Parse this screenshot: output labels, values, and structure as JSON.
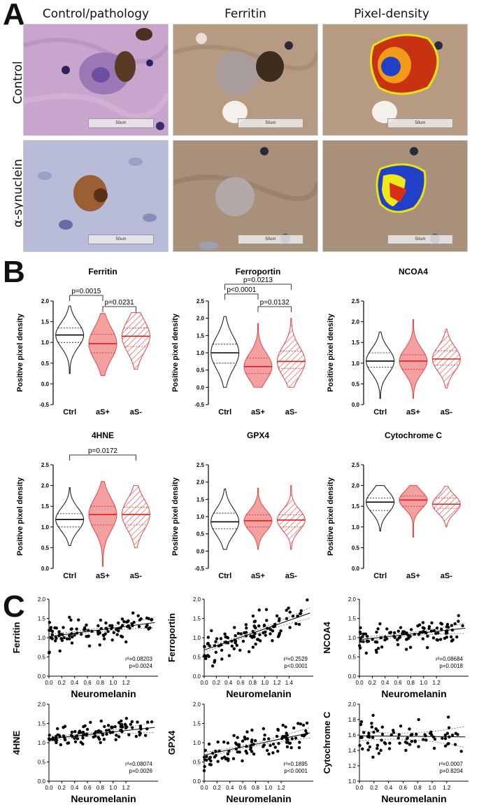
{
  "panels": {
    "a": "A",
    "b": "B",
    "c": "C"
  },
  "panel_a": {
    "column_headers": [
      "Control/pathology",
      "Ferritin",
      "Pixel-density"
    ],
    "row_labels": [
      "Control",
      "α-synuclein"
    ],
    "scale_label": "50um"
  },
  "chart_data": [
    {
      "type": "violin",
      "title": "Ferritin",
      "ylabel": "Positive pixel density",
      "ylim": [
        -0.5,
        2.0
      ],
      "yticks": [
        "-0.5",
        "0.0",
        "0.5",
        "1.0",
        "1.5",
        "2.0"
      ],
      "categories": [
        "Ctrl",
        "aS+",
        "aS-"
      ],
      "series": [
        {
          "name": "Ctrl",
          "min": 0.25,
          "q1": 1.0,
          "median": 1.18,
          "q3": 1.35,
          "max": 1.88
        },
        {
          "name": "aS+",
          "min": 0.2,
          "q1": 0.75,
          "median": 0.97,
          "q3": 1.2,
          "max": 1.7
        },
        {
          "name": "aS-",
          "min": 0.35,
          "q1": 0.9,
          "median": 1.15,
          "q3": 1.35,
          "max": 1.72
        }
      ],
      "annotations": [
        {
          "label": "p=0.0015",
          "from": 0,
          "to": 1
        },
        {
          "label": "p=0.0231",
          "from": 1,
          "to": 2
        }
      ]
    },
    {
      "type": "violin",
      "title": "Ferroportin",
      "ylabel": "Positive pixel density",
      "ylim": [
        -0.5,
        2.5
      ],
      "yticks": [
        "-0.5",
        "0.0",
        "0.5",
        "1.0",
        "1.5",
        "2.0",
        "2.5"
      ],
      "categories": [
        "Ctrl",
        "aS+",
        "aS-"
      ],
      "series": [
        {
          "name": "Ctrl",
          "min": 0.0,
          "q1": 0.7,
          "median": 1.0,
          "q3": 1.25,
          "max": 2.05
        },
        {
          "name": "aS+",
          "min": 0.0,
          "q1": 0.4,
          "median": 0.6,
          "q3": 0.85,
          "max": 1.85
        },
        {
          "name": "aS-",
          "min": 0.0,
          "q1": 0.55,
          "median": 0.75,
          "q3": 1.05,
          "max": 2.0
        }
      ],
      "annotations": [
        {
          "label": "p<0.0001",
          "from": 0,
          "to": 1
        },
        {
          "label": "p=0.0132",
          "from": 1,
          "to": 2
        },
        {
          "label": "p=0.0213",
          "from": 0,
          "to": 2
        }
      ]
    },
    {
      "type": "violin",
      "title": "NCOA4",
      "ylabel": "Positive pixel density",
      "ylim": [
        0.0,
        2.5
      ],
      "yticks": [
        "0.0",
        "0.5",
        "1.0",
        "1.5",
        "2.0",
        "2.5"
      ],
      "categories": [
        "Ctrl",
        "aS+",
        "aS-"
      ],
      "series": [
        {
          "name": "Ctrl",
          "min": 0.15,
          "q1": 0.9,
          "median": 1.05,
          "q3": 1.25,
          "max": 1.75
        },
        {
          "name": "aS+",
          "min": 0.15,
          "q1": 0.85,
          "median": 1.05,
          "q3": 1.2,
          "max": 2.05
        },
        {
          "name": "aS-",
          "min": 0.4,
          "q1": 0.95,
          "median": 1.1,
          "q3": 1.3,
          "max": 1.82
        }
      ],
      "annotations": []
    },
    {
      "type": "violin",
      "title": "4HNE",
      "ylabel": "Positive pixel density",
      "ylim": [
        0.0,
        2.5
      ],
      "yticks": [
        "0.0",
        "0.5",
        "1.0",
        "1.5",
        "2.0",
        "2.5"
      ],
      "categories": [
        "Ctrl",
        "aS+",
        "aS-"
      ],
      "series": [
        {
          "name": "Ctrl",
          "min": 0.55,
          "q1": 1.0,
          "median": 1.18,
          "q3": 1.32,
          "max": 1.95
        },
        {
          "name": "aS+",
          "min": 0.05,
          "q1": 1.05,
          "median": 1.3,
          "q3": 1.5,
          "max": 2.1
        },
        {
          "name": "aS-",
          "min": 0.5,
          "q1": 1.05,
          "median": 1.3,
          "q3": 1.48,
          "max": 2.0
        }
      ],
      "annotations": [
        {
          "label": "p=0.0172",
          "from": 0,
          "to": 2
        }
      ]
    },
    {
      "type": "violin",
      "title": "GPX4",
      "ylabel": "Positive pixel density",
      "ylim": [
        -0.5,
        2.5
      ],
      "yticks": [
        "-0.5",
        "0.0",
        "0.5",
        "1.0",
        "1.5",
        "2.0",
        "2.5"
      ],
      "categories": [
        "Ctrl",
        "aS+",
        "aS-"
      ],
      "series": [
        {
          "name": "Ctrl",
          "min": 0.05,
          "q1": 0.65,
          "median": 0.85,
          "q3": 1.1,
          "max": 1.8
        },
        {
          "name": "aS+",
          "min": 0.05,
          "q1": 0.7,
          "median": 0.88,
          "q3": 1.05,
          "max": 1.82
        },
        {
          "name": "aS-",
          "min": 0.05,
          "q1": 0.7,
          "median": 0.9,
          "q3": 1.05,
          "max": 1.9
        }
      ],
      "annotations": []
    },
    {
      "type": "violin",
      "title": "Cytochrome C",
      "ylabel": "Positive pixel density",
      "ylim": [
        0.0,
        2.5
      ],
      "yticks": [
        "0.0",
        "0.5",
        "1.0",
        "1.5",
        "2.0",
        "2.5"
      ],
      "categories": [
        "Ctrl",
        "aS+",
        "aS-"
      ],
      "series": [
        {
          "name": "Ctrl",
          "min": 0.9,
          "q1": 1.4,
          "median": 1.6,
          "q3": 1.7,
          "max": 2.0
        },
        {
          "name": "aS+",
          "min": 0.75,
          "q1": 1.5,
          "median": 1.65,
          "q3": 1.75,
          "max": 2.0
        },
        {
          "name": "aS-",
          "min": 1.0,
          "q1": 1.45,
          "median": 1.55,
          "q3": 1.7,
          "max": 1.98
        }
      ],
      "annotations": []
    },
    {
      "type": "scatter",
      "ylabel": "Ferritin",
      "xlabel": "Neuromelanin",
      "xlim": [
        0.0,
        1.7
      ],
      "ylim": [
        0.0,
        2.0
      ],
      "xticks": [
        "0.0",
        "0.2",
        "0.4",
        "0.6",
        "0.8",
        "1.0",
        "1.2"
      ],
      "yticks": [
        "0.0",
        "0.5",
        "1.0",
        "1.5",
        "2.0"
      ],
      "fit": {
        "intercept": 1.03,
        "slope": 0.22
      },
      "stats": [
        "r²=0.08203",
        "p=0.0024"
      ],
      "seed": 11,
      "n": 110,
      "spread": 0.28
    },
    {
      "type": "scatter",
      "ylabel": "Ferroportin",
      "xlabel": "Neuromelanin",
      "xlim": [
        0.0,
        1.8
      ],
      "ylim": [
        0.0,
        2.0
      ],
      "xticks": [
        "0.0",
        "0.2",
        "0.4",
        "0.6",
        "0.8",
        "1.0",
        "1.2",
        "1.4"
      ],
      "yticks": [
        "0.0",
        "0.5",
        "1.0",
        "1.5",
        "2.0"
      ],
      "fit": {
        "intercept": 0.68,
        "slope": 0.55
      },
      "stats": [
        "r²=0.2529",
        "p<0.0001"
      ],
      "seed": 23,
      "n": 110,
      "spread": 0.35
    },
    {
      "type": "scatter",
      "ylabel": "NCOA4",
      "xlabel": "Neuromelanin",
      "xlim": [
        0.0,
        1.7
      ],
      "ylim": [
        0.0,
        2.0
      ],
      "xticks": [
        "0.0",
        "0.2",
        "0.4",
        "0.6",
        "0.8",
        "1.0",
        "1.2"
      ],
      "yticks": [
        "0.0",
        "0.5",
        "1.0",
        "1.5",
        "2.0"
      ],
      "fit": {
        "intercept": 0.95,
        "slope": 0.18
      },
      "stats": [
        "r²=0.08684",
        "p=0.0018"
      ],
      "seed": 37,
      "n": 110,
      "spread": 0.25
    },
    {
      "type": "scatter",
      "ylabel": "4HNE",
      "xlabel": "Neuromelanin",
      "xlim": [
        0.0,
        1.7
      ],
      "ylim": [
        0.0,
        2.0
      ],
      "xticks": [
        "0.0",
        "0.2",
        "0.4",
        "0.6",
        "0.8",
        "1.0",
        "1.2"
      ],
      "yticks": [
        "0.0",
        "0.5",
        "1.0",
        "1.5",
        "2.0"
      ],
      "fit": {
        "intercept": 1.1,
        "slope": 0.18
      },
      "stats": [
        "r²=0.08074",
        "p=0.0026"
      ],
      "seed": 41,
      "n": 110,
      "spread": 0.22
    },
    {
      "type": "scatter",
      "ylabel": "GPX4",
      "xlabel": "Neuromelanin",
      "xlim": [
        0.0,
        1.7
      ],
      "ylim": [
        0.0,
        2.0
      ],
      "xticks": [
        "0.0",
        "0.2",
        "0.4",
        "0.6",
        "0.8",
        "1.0",
        "1.2"
      ],
      "yticks": [
        "0.0",
        "0.5",
        "1.0",
        "1.5",
        "2.0"
      ],
      "fit": {
        "intercept": 0.68,
        "slope": 0.35
      },
      "stats": [
        "r²=0.1895",
        "p<0.0001"
      ],
      "seed": 53,
      "n": 110,
      "spread": 0.28
    },
    {
      "type": "scatter",
      "ylabel": "Cytochrome C",
      "xlabel": "Neuromelanin",
      "xlim": [
        0.0,
        1.5
      ],
      "ylim": [
        1.0,
        2.0
      ],
      "xticks": [
        "0.0",
        "0.2",
        "0.4",
        "0.6",
        "0.8",
        "1.0",
        "1.2"
      ],
      "yticks": [
        "1.0",
        "1.2",
        "1.4",
        "1.6",
        "1.8",
        "2.0"
      ],
      "fit": {
        "intercept": 1.59,
        "slope": -0.01
      },
      "stats": [
        "r²=0.0007",
        "p=0.8204"
      ],
      "seed": 67,
      "n": 80,
      "spread": 0.16
    }
  ],
  "colors": {
    "ctrl_stroke": "#111111",
    "as_fill": "#f2a0a0",
    "as_stroke": "#e04848",
    "median": "#d42020"
  }
}
